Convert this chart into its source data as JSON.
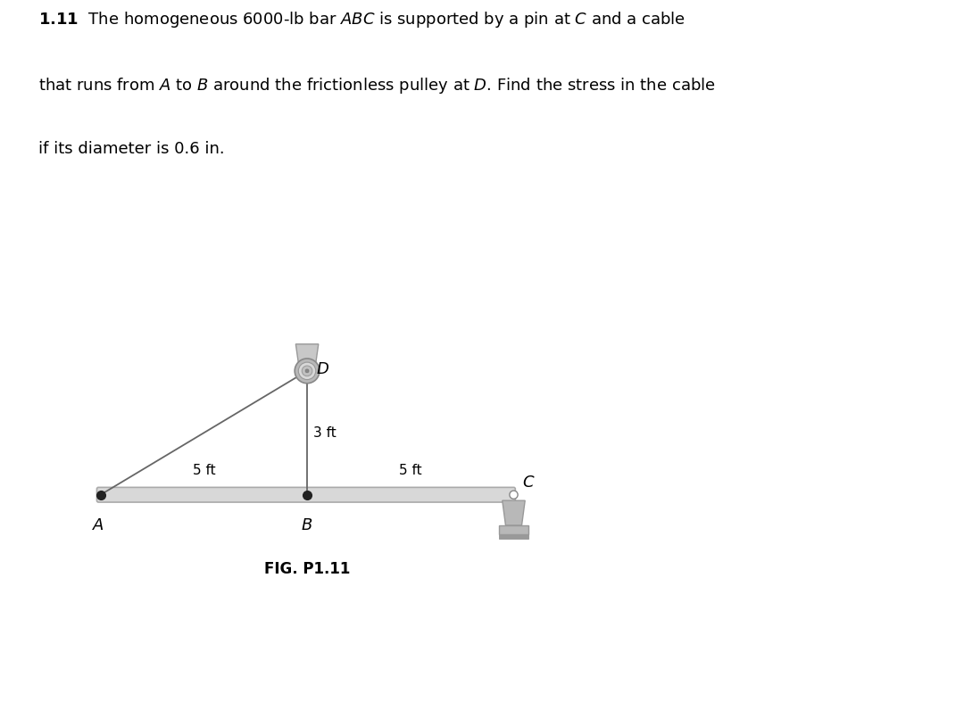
{
  "fig_label": "FIG. P1.11",
  "bg_color": "#ffffff",
  "bar_color": "#d8d8d8",
  "bar_edge_color": "#aaaaaa",
  "support_color": "#b8b8b8",
  "cable_color": "#666666",
  "pulley_color": "#c0c0c0",
  "pulley_mount_color": "#c8c8c8",
  "pin_color": "#222222",
  "A": [
    0.0,
    0.0
  ],
  "B": [
    5.0,
    0.0
  ],
  "C": [
    10.0,
    0.0
  ],
  "D": [
    5.0,
    3.0
  ],
  "label_A": "A",
  "label_B": "B",
  "label_C": "C",
  "label_D": "D",
  "dim_AB": "5 ft",
  "dim_BC": "5 ft",
  "dim_DB": "3 ft",
  "font_size_labels": 13,
  "font_size_dims": 11,
  "font_size_fig_label": 12,
  "title_line1": "$\\mathbf{1.11}$  The homogeneous 6000-lb bar $\\mathit{ABC}$ is supported by a pin at $\\mathit{C}$ and a cable",
  "title_line2": "that runs from $\\mathit{A}$ to $\\mathit{B}$ around the frictionless pulley at $\\mathit{D}$. Find the stress in the cable",
  "title_line3": "if its diameter is 0.6 in."
}
